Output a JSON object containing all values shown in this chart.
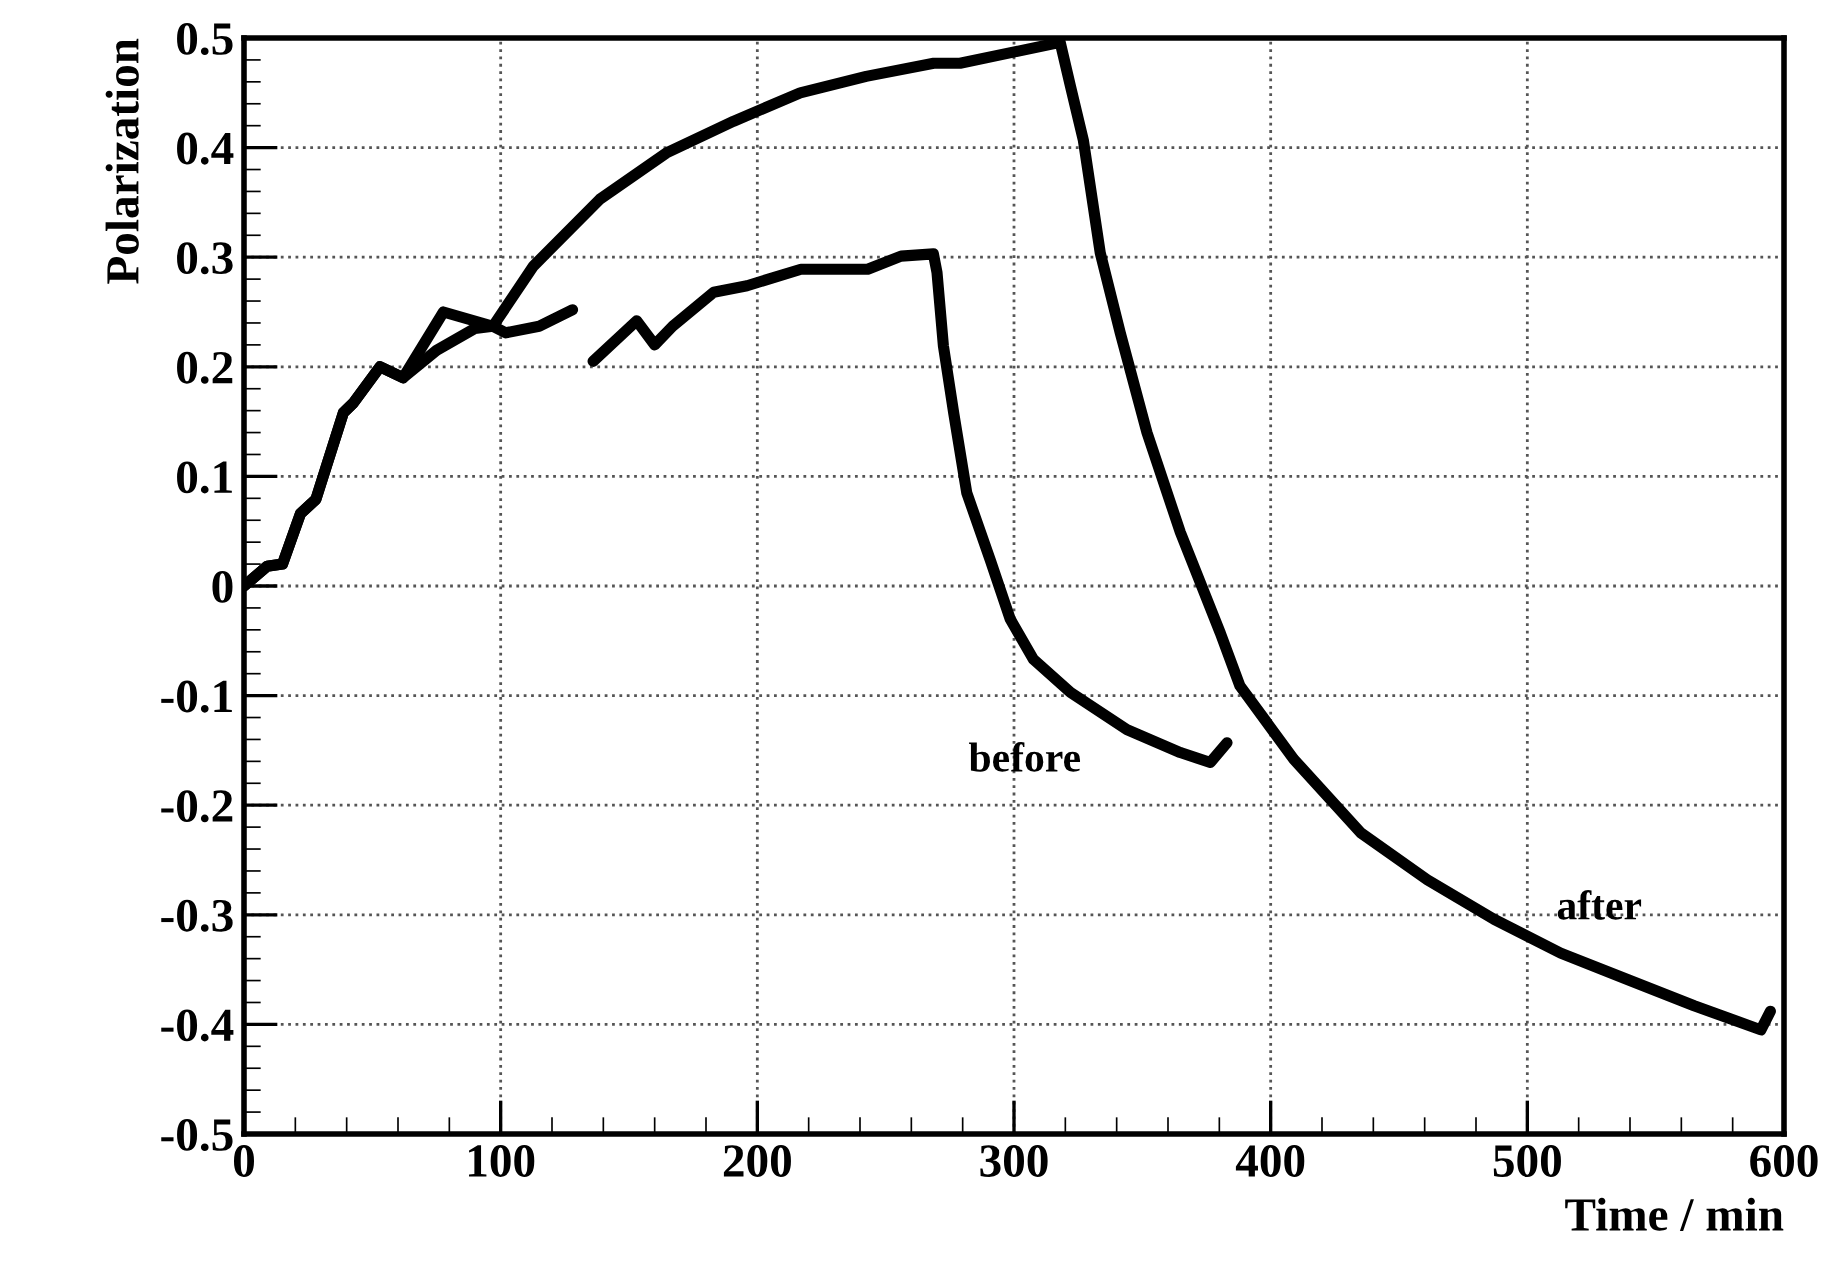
{
  "chart_data": {
    "type": "line",
    "xlabel": "Time / min",
    "ylabel": "Polarization",
    "xlim": [
      0,
      600
    ],
    "ylim": [
      -0.5,
      0.5
    ],
    "xticks": [
      0,
      100,
      200,
      300,
      400,
      500,
      600
    ],
    "yticks": [
      {
        "value": -0.5,
        "label": "-0.5"
      },
      {
        "value": -0.4,
        "label": "-0.4"
      },
      {
        "value": -0.3,
        "label": "-0.3"
      },
      {
        "value": -0.2,
        "label": "-0.2"
      },
      {
        "value": -0.1,
        "label": "-0.1"
      },
      0,
      0.1,
      0.2,
      0.3,
      0.4,
      0.5
    ],
    "grid": true,
    "marker": "none",
    "line_style": "solid",
    "series": [
      {
        "color": "#000000",
        "x": [
          0,
          9,
          15,
          22,
          28,
          38.7,
          42.6,
          53,
          62,
          77.7,
          97,
          102,
          115,
          128,
          129.6,
          136,
          153,
          160,
          167,
          183,
          196,
          217,
          243,
          256,
          268.6,
          270,
          272.5,
          276.5,
          281.6,
          290.7,
          298.5,
          307.6,
          322,
          344,
          364.8,
          376.5,
          383
        ],
        "values": [
          0,
          0.018,
          0.02,
          0.066,
          0.079,
          0.158,
          0.167,
          0.2,
          0.19,
          0.25,
          0.237,
          0.231,
          0.237,
          0.252,
          null,
          0.205,
          0.242,
          0.22,
          0.237,
          0.268,
          0.274,
          0.289,
          0.289,
          0.301,
          0.303,
          0.286,
          0.219,
          0.158,
          0.085,
          0.024,
          -0.03,
          -0.067,
          -0.097,
          -0.131,
          -0.152,
          -0.161,
          -0.143
        ]
      },
      {
        "color": "#000000",
        "x": [
          0,
          9,
          15,
          22,
          28,
          38.7,
          42.6,
          53,
          62,
          75,
          90,
          97,
          112.8,
          138.7,
          164.5,
          190.7,
          216.7,
          242.4,
          268.7,
          279,
          318,
          322,
          327,
          333.6,
          341.4,
          351.8,
          364.8,
          380.4,
          388,
          409,
          435,
          461,
          487,
          513,
          539,
          565,
          591,
          594.7
        ],
        "values": [
          0,
          0.018,
          0.02,
          0.066,
          0.079,
          0.158,
          0.167,
          0.2,
          0.19,
          0.215,
          0.235,
          0.237,
          0.292,
          0.353,
          0.395,
          0.424,
          0.45,
          0.465,
          0.477,
          0.477,
          0.496,
          0.456,
          0.407,
          0.304,
          0.231,
          0.14,
          0.049,
          -0.043,
          -0.091,
          -0.158,
          -0.225,
          -0.268,
          -0.304,
          -0.335,
          -0.359,
          -0.383,
          -0.405,
          -0.388
        ]
      }
    ],
    "annotations": [
      "before",
      "after"
    ]
  }
}
